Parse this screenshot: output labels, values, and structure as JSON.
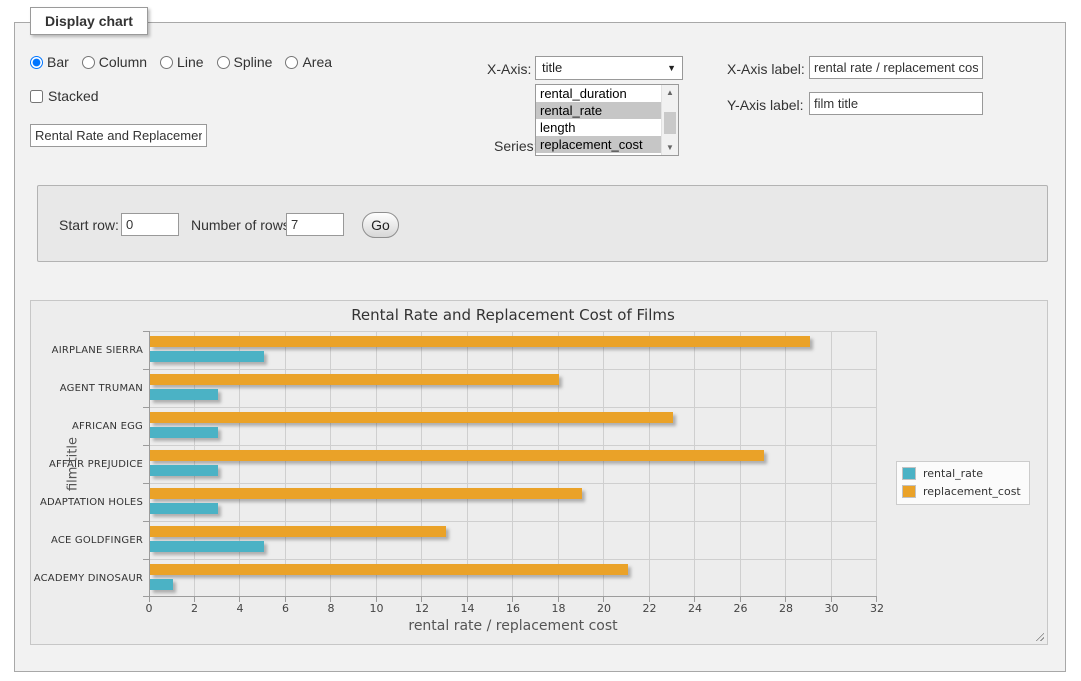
{
  "panel": {
    "legend": "Display chart",
    "chart_types": [
      "Bar",
      "Column",
      "Line",
      "Spline",
      "Area"
    ],
    "selected_type": "Bar",
    "stacked_label": "Stacked",
    "title_input_value": "Rental Rate and Replacement Cost of Films",
    "x_axis_caption": "X-Axis:",
    "x_axis_select_value": "title",
    "series_caption": "Series:",
    "series_options": [
      "rental_duration",
      "rental_rate",
      "length",
      "replacement_cost"
    ],
    "series_selected": [
      "rental_rate",
      "replacement_cost"
    ],
    "x_axis_label_caption": "X-Axis label:",
    "x_axis_label_value": "rental rate / replacement cost",
    "y_axis_label_caption": "Y-Axis label:",
    "y_axis_label_value": "film title"
  },
  "params": {
    "start_row_label": "Start row:",
    "start_row_value": "0",
    "num_rows_label": "Number of rows:",
    "num_rows_value": "7",
    "go_label": "Go"
  },
  "chart_data": {
    "type": "bar",
    "orientation": "horizontal",
    "title": "Rental Rate and Replacement Cost of Films",
    "xlabel": "rental rate / replacement cost",
    "ylabel": "film title",
    "categories": [
      "AIRPLANE SIERRA",
      "AGENT TRUMAN",
      "AFRICAN EGG",
      "AFFAIR PREJUDICE",
      "ADAPTATION HOLES",
      "ACE GOLDFINGER",
      "ACADEMY DINOSAUR"
    ],
    "series": [
      {
        "name": "rental_rate",
        "color": "#4bb2c5",
        "values": [
          4.99,
          2.99,
          2.99,
          2.99,
          2.99,
          4.99,
          0.99
        ]
      },
      {
        "name": "replacement_cost",
        "color": "#EAA228",
        "values": [
          28.99,
          17.99,
          22.99,
          26.99,
          18.99,
          12.99,
          20.99
        ]
      }
    ],
    "xlim": [
      0,
      32
    ],
    "xticks": [
      0,
      2,
      4,
      6,
      8,
      10,
      12,
      14,
      16,
      18,
      20,
      22,
      24,
      26,
      28,
      30,
      32
    ],
    "grid": true,
    "legend_position": "right"
  }
}
